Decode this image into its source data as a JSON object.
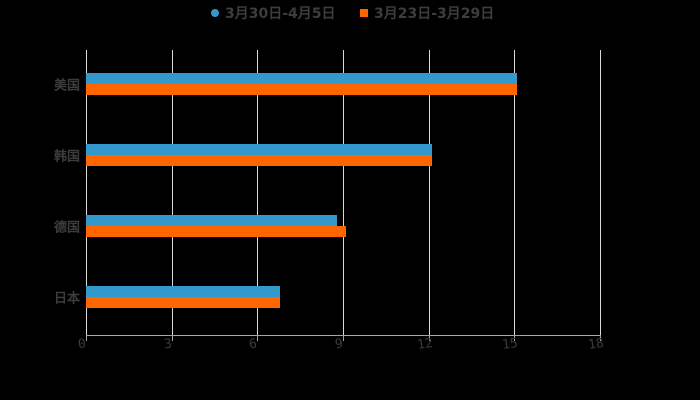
{
  "chart_data": {
    "type": "bar",
    "orientation": "horizontal",
    "title": "",
    "xlabel": "",
    "ylabel": "",
    "categories": [
      "美国",
      "韩国",
      "德国",
      "日本"
    ],
    "series": [
      {
        "name": "3月30日-4月5日",
        "color": "#3399cc",
        "marker": "circle",
        "values": [
          15.1,
          12.1,
          8.8,
          6.8
        ]
      },
      {
        "name": "3月23日-3月29日",
        "color": "#ff6600",
        "marker": "square",
        "values": [
          15.1,
          12.1,
          9.1,
          6.8
        ]
      }
    ],
    "xlim": [
      0,
      18
    ],
    "xticks": [
      0,
      3,
      6,
      9,
      12,
      15,
      18
    ],
    "xtick_labels": [
      "0",
      "3",
      "6",
      "9",
      "12",
      "15",
      "18"
    ],
    "grid": {
      "vertical": true,
      "horizontal": false
    },
    "legend_position": "top",
    "background": "#000000"
  },
  "legend": [
    {
      "label": "3月30日-4月5日",
      "color": "#3399cc",
      "marker": "circle"
    },
    {
      "label": "3月23日-3月29日",
      "color": "#ff6600",
      "marker": "square"
    }
  ]
}
